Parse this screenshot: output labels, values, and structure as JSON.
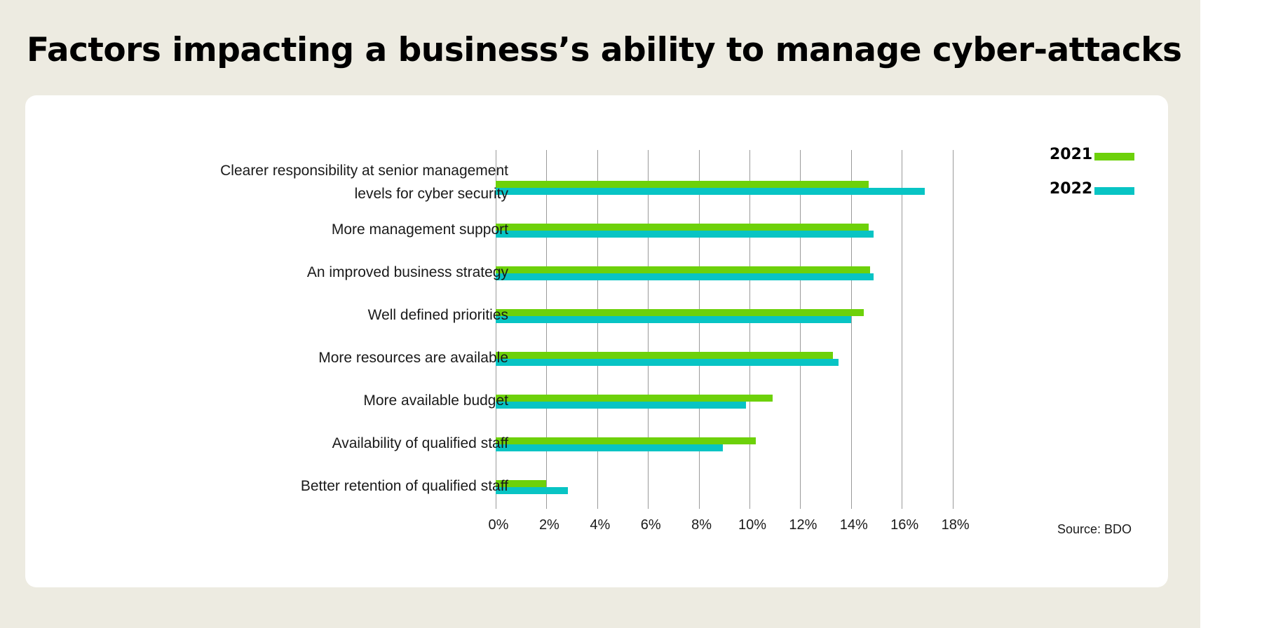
{
  "title": "Factors impacting a business’s ability to manage cyber-attacks",
  "source": "Source: BDO",
  "legend": [
    {
      "label": "2021",
      "color": "#6dd10a"
    },
    {
      "label": "2022",
      "color": "#08c4c4"
    }
  ],
  "axis": {
    "ticks": [
      "0%",
      "2%",
      "4%",
      "6%",
      "8%",
      "10%",
      "12%",
      "14%",
      "16%",
      "18%"
    ]
  },
  "rows": [
    {
      "label_line1": "Clearer responsibility at senior management",
      "label_line2": "levels for cyber security",
      "v2021": 14.7,
      "v2022": 16.9
    },
    {
      "label_line1": "More management support",
      "label_line2": "",
      "v2021": 14.7,
      "v2022": 14.9
    },
    {
      "label_line1": "An improved business strategy",
      "label_line2": "",
      "v2021": 14.75,
      "v2022": 14.9
    },
    {
      "label_line1": "Well defined priorities",
      "label_line2": "",
      "v2021": 14.5,
      "v2022": 14.0
    },
    {
      "label_line1": "More resources are available",
      "label_line2": "",
      "v2021": 13.3,
      "v2022": 13.5
    },
    {
      "label_line1": "More available budget",
      "label_line2": "",
      "v2021": 10.9,
      "v2022": 9.85
    },
    {
      "label_line1": "Availability of qualified staff",
      "label_line2": "",
      "v2021": 10.25,
      "v2022": 8.95
    },
    {
      "label_line1": "Better retention of qualified staff",
      "label_line2": "",
      "v2021": 2.0,
      "v2022": 2.85
    }
  ],
  "chart_data": {
    "type": "bar",
    "orientation": "horizontal",
    "title": "Factors impacting a business’s ability to manage cyber-attacks",
    "categories": [
      "Clearer responsibility at senior management levels for cyber security",
      "More management support",
      "An improved business strategy",
      "Well defined priorities",
      "More resources are available",
      "More available budget",
      "Availability of qualified staff",
      "Better retention of qualified staff"
    ],
    "series": [
      {
        "name": "2021",
        "color": "#6dd10a",
        "values": [
          14.7,
          14.7,
          14.75,
          14.5,
          13.3,
          10.9,
          10.25,
          2.0
        ]
      },
      {
        "name": "2022",
        "color": "#08c4c4",
        "values": [
          16.9,
          14.9,
          14.9,
          14.0,
          13.5,
          9.85,
          8.95,
          2.85
        ]
      }
    ],
    "xlabel": "",
    "ylabel": "",
    "xlim": [
      0,
      18
    ],
    "x_ticks": [
      "0%",
      "2%",
      "4%",
      "6%",
      "8%",
      "10%",
      "12%",
      "14%",
      "16%",
      "18%"
    ],
    "grid": true,
    "legend_position": "top-right",
    "annotations": [
      "Source: BDO"
    ]
  }
}
